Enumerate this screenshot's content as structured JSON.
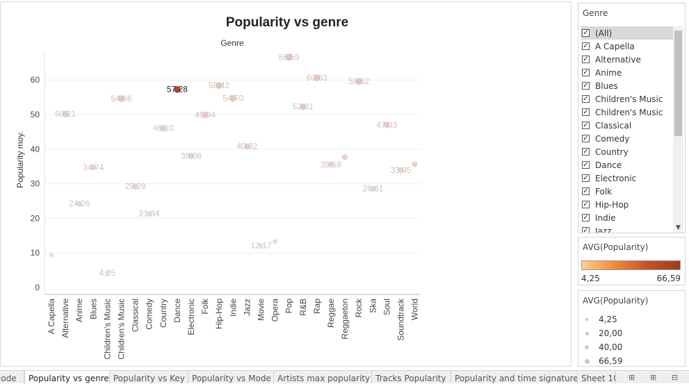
{
  "chart_data": {
    "type": "scatter",
    "title": "Popularity vs genre",
    "header_label": "Genre",
    "ylabel": "Popularity moy.",
    "ylim": [
      0,
      70
    ],
    "yticks": [
      0,
      10,
      20,
      30,
      40,
      50,
      60
    ],
    "categories": [
      "A Capella",
      "Alternative",
      "Anime",
      "Blues",
      "Children's Music",
      "Children's Music",
      "Classical",
      "Comedy",
      "Country",
      "Dance",
      "Electronic",
      "Folk",
      "Hip-Hop",
      "Indie",
      "Jazz",
      "Movie",
      "Opera",
      "Pop",
      "R&B",
      "Rap",
      "Reggae",
      "Reggaeton",
      "Rock",
      "Ska",
      "Soul",
      "Soundtrack",
      "World"
    ],
    "values": [
      9.3,
      50.21,
      24.26,
      34.74,
      4.25,
      54.66,
      29.28,
      21.34,
      46.1,
      57.28,
      38.06,
      49.94,
      58.42,
      54.7,
      40.82,
      12.17,
      13.3,
      66.59,
      52.31,
      60.63,
      35.59,
      37.7,
      59.62,
      28.61,
      47.03,
      33.95,
      35.6
    ],
    "labels": [
      "",
      "50,21",
      "24,26",
      "34,74",
      "4,25",
      "54,66",
      "29,28",
      "21,34",
      "46,10",
      "57,28",
      "38,06",
      "49,94",
      "58,42",
      "54,70",
      "40,82",
      "12,17",
      "",
      "66,59",
      "52,31",
      "60,63",
      "35,59",
      "",
      "59,62",
      "28,61",
      "47,03",
      "33,95",
      ""
    ],
    "highlight_index": 9,
    "grid": true
  },
  "filter": {
    "title": "Genre",
    "items": [
      "(All)",
      "A Capella",
      "Alternative",
      "Anime",
      "Blues",
      "Children's Music",
      "Children's Music",
      "Classical",
      "Comedy",
      "Country",
      "Dance",
      "Electronic",
      "Folk",
      "Hip-Hop",
      "Indie",
      "Jazz"
    ],
    "check_glyph": "✓",
    "scroll_glyph": "▼"
  },
  "color_legend": {
    "title": "AVG(Popularity)",
    "min_label": "4,25",
    "max_label": "66,59",
    "colors": [
      "#fbd08f",
      "#9a3a23"
    ]
  },
  "size_legend": {
    "title": "AVG(Popularity)",
    "items": [
      "4,25",
      "20,00",
      "40,00",
      "66,59"
    ]
  },
  "tabs": {
    "items": [
      "Mode",
      "Popularity vs genre",
      "Popularity vs Key",
      "Popularity vs Mode",
      "Artists max popularity",
      "Tracks Popularity",
      "Popularity and time signature",
      "Sheet 10"
    ],
    "icons": [
      "new-worksheet-icon",
      "new-dashboard-icon",
      "new-story-icon"
    ],
    "icon_glyphs": [
      "⊞",
      "⊞",
      "⊟"
    ]
  }
}
